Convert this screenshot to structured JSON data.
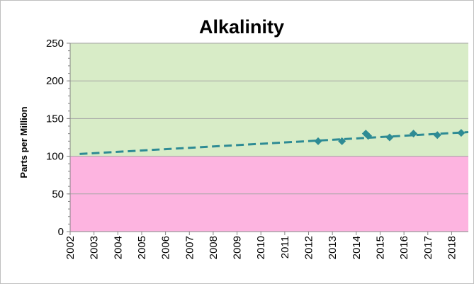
{
  "chart_data": {
    "type": "scatter",
    "title": "Alkalinity",
    "xlabel": "",
    "ylabel": "Parts per Million",
    "xlim": [
      2002,
      2018.7
    ],
    "ylim": [
      0,
      250
    ],
    "x_ticks": [
      "2002",
      "2003",
      "2004",
      "2005",
      "2006",
      "2007",
      "2008",
      "2009",
      "2010",
      "2011",
      "2012",
      "2013",
      "2014",
      "2015",
      "2016",
      "2017",
      "2018"
    ],
    "y_ticks": [
      "0",
      "50",
      "100",
      "150",
      "200",
      "250"
    ],
    "grid": true,
    "legend": "none",
    "bands": [
      {
        "from": 0,
        "to": 100,
        "color": "#fdb4e0"
      },
      {
        "from": 100,
        "to": 250,
        "color": "#d8ecc7"
      }
    ],
    "series": [
      {
        "x": [
          2012.4,
          2013.4,
          2014.4,
          2014.5,
          2015.4,
          2016.4,
          2017.4,
          2018.4
        ],
        "values": [
          120,
          120,
          130,
          127,
          125,
          130,
          128,
          131
        ],
        "color": "#2e8b94",
        "marker": "diamond"
      }
    ],
    "trendline": {
      "x": [
        2002.4,
        2018.7
      ],
      "values": [
        103,
        132
      ],
      "color": "#2e8b94",
      "style": "dashed"
    }
  }
}
